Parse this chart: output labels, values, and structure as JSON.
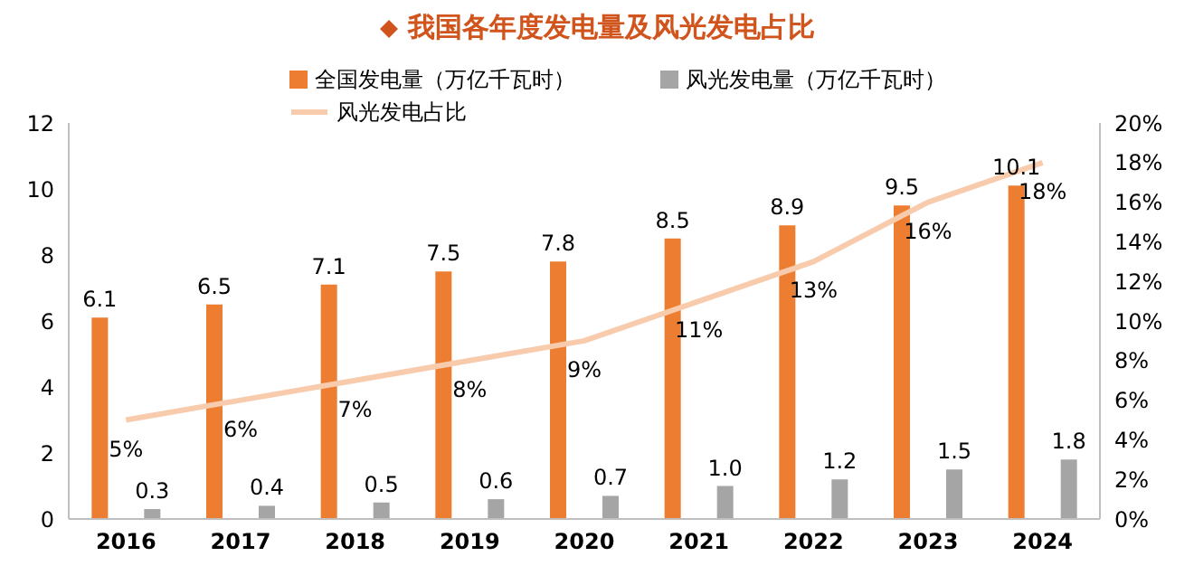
{
  "chart_data": {
    "type": "bar",
    "title": "我国各年度发电量及风光发电占比",
    "categories": [
      "2016",
      "2017",
      "2018",
      "2019",
      "2020",
      "2021",
      "2022",
      "2023",
      "2024"
    ],
    "series": [
      {
        "name": "全国发电量（万亿千瓦时）",
        "color": "#ed7d31",
        "values": [
          6.1,
          6.5,
          7.1,
          7.5,
          7.8,
          8.5,
          8.9,
          9.5,
          10.1
        ],
        "value_labels": [
          "6.1",
          "6.5",
          "7.1",
          "7.5",
          "7.8",
          "8.5",
          "8.9",
          "9.5",
          "10.1"
        ]
      },
      {
        "name": "风光发电量（万亿千瓦时）",
        "color": "#a5a5a5",
        "values": [
          0.3,
          0.4,
          0.5,
          0.6,
          0.7,
          1.0,
          1.2,
          1.5,
          1.8
        ],
        "value_labels": [
          "0.3",
          "0.4",
          "0.5",
          "0.6",
          "0.7",
          "1.0",
          "1.2",
          "1.5",
          "1.8"
        ]
      },
      {
        "name": "风光发电占比",
        "type": "line",
        "axis": "y2",
        "color": "#f8cbad",
        "values": [
          5,
          6,
          7,
          8,
          9,
          11,
          13,
          16,
          18
        ],
        "value_labels": [
          "5%",
          "6%",
          "7%",
          "8%",
          "9%",
          "11%",
          "13%",
          "16%",
          "18%"
        ]
      }
    ],
    "ylim": [
      0,
      12
    ],
    "yticks": [
      0,
      2,
      4,
      6,
      8,
      10,
      12
    ],
    "y2lim": [
      0,
      20
    ],
    "y2ticks": [
      {
        "value": 0,
        "label": "0%"
      },
      {
        "value": 2,
        "label": "2%"
      },
      {
        "value": 4,
        "label": "4%"
      },
      {
        "value": 6,
        "label": "6%"
      },
      {
        "value": 8,
        "label": "8%"
      },
      {
        "value": 10,
        "label": "10%"
      },
      {
        "value": 12,
        "label": "12%"
      },
      {
        "value": 14,
        "label": "14%"
      },
      {
        "value": 16,
        "label": "16%"
      },
      {
        "value": 18,
        "label": "18%"
      },
      {
        "value": 20,
        "label": "20%"
      }
    ],
    "legend": "top",
    "marker": "none",
    "line_style": "solid"
  }
}
